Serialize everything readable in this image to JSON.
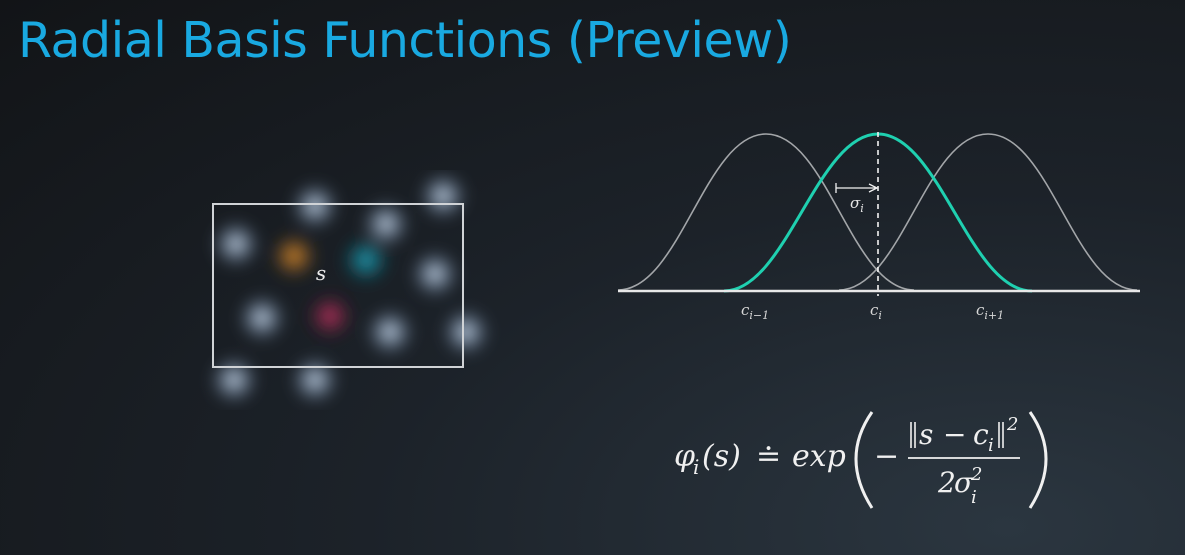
{
  "slide": {
    "title": "Radial Basis Functions (Preview)"
  },
  "state_diagram": {
    "state_label": "s",
    "colors": {
      "feature_glow": "#b9d0ea",
      "orange": "#e38b2a",
      "teal": "#1fa3b8",
      "red": "#c8325a",
      "box": "#cfd3d6"
    },
    "activated_features": [
      "orange",
      "teal",
      "red"
    ]
  },
  "rbf_plot": {
    "center_labels": {
      "previous": "c_{i−1}",
      "current": "c_i",
      "next": "c_{i+1}"
    },
    "width_label": "σ_i",
    "colors": {
      "neighbor_curve": "#a7aaad",
      "highlight_curve": "#1fd0b0",
      "axis": "#e6e6e6"
    }
  },
  "formula": {
    "lhs_func": "φ",
    "lhs_sub": "i",
    "lhs_arg": "(s)",
    "relation": "≐",
    "exp": "exp",
    "minus": "−",
    "numerator_s": "s",
    "numerator_op": "−",
    "numerator_c": "c",
    "numerator_c_sub": "i",
    "numerator_power": "2",
    "denominator_coef": "2",
    "denominator_sigma": "σ",
    "denominator_sub": "i",
    "denominator_power": "2"
  }
}
